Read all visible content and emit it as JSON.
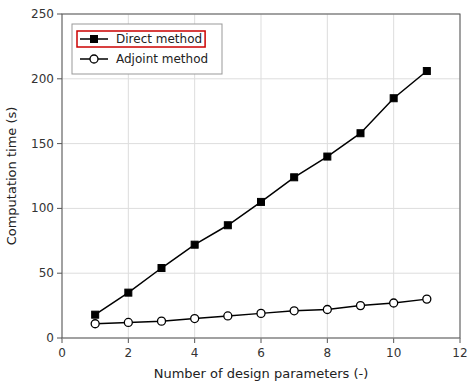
{
  "chart_data": {
    "type": "line",
    "x": [
      1,
      2,
      3,
      4,
      5,
      6,
      7,
      8,
      9,
      10,
      11
    ],
    "series": [
      {
        "name": "Direct method",
        "color": "#000000",
        "marker": "square",
        "values": [
          18,
          35,
          54,
          72,
          87,
          105,
          124,
          140,
          158,
          185,
          206
        ]
      },
      {
        "name": "Adjoint method",
        "color": "#000000",
        "marker": "circle",
        "values": [
          11,
          12,
          13,
          15,
          17,
          19,
          21,
          22,
          25,
          27,
          30
        ]
      }
    ],
    "x_label": "Number of design parameters (-)",
    "y_label": "Computation time (s)",
    "xlim": [
      0,
      12
    ],
    "ylim": [
      0,
      250
    ],
    "xticks": [
      0,
      2,
      4,
      6,
      8,
      10,
      12
    ],
    "yticks": [
      0,
      50,
      100,
      150,
      200,
      250
    ],
    "grid": true,
    "legend": "top-left"
  }
}
